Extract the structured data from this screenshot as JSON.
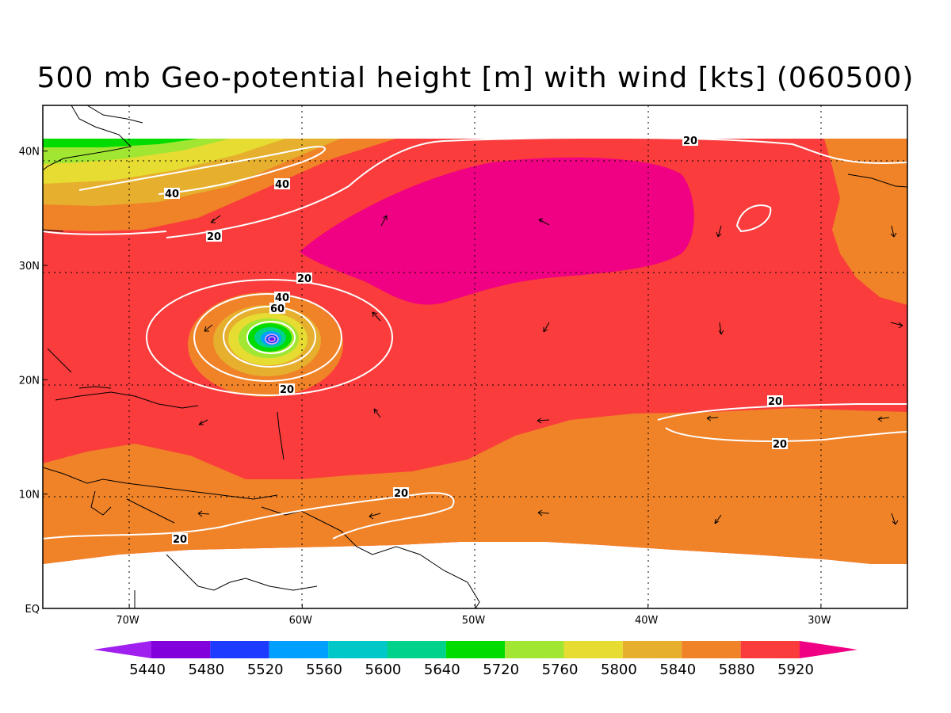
{
  "title": "500 mb Geo-potential height [m] with wind [kts] (060500)",
  "map": {
    "lon_range": [
      -75,
      -25
    ],
    "lat_range": [
      0,
      44
    ],
    "lat_ticks": [
      {
        "value": 40,
        "label": "40N"
      },
      {
        "value": 30,
        "label": "30N"
      },
      {
        "value": 20,
        "label": "20N"
      },
      {
        "value": 10,
        "label": "10N"
      },
      {
        "value": 0,
        "label": "EQ"
      }
    ],
    "lon_ticks": [
      {
        "value": -70,
        "label": "70W"
      },
      {
        "value": -60,
        "label": "60W"
      },
      {
        "value": -50,
        "label": "50W"
      },
      {
        "value": -40,
        "label": "40W"
      },
      {
        "value": -30,
        "label": "30W"
      }
    ],
    "grid": true
  },
  "colorbar": {
    "levels": [
      "5440",
      "5480",
      "5520",
      "5560",
      "5600",
      "5640",
      "5720",
      "5760",
      "5800",
      "5840",
      "5880",
      "5920"
    ],
    "colors": [
      "#a020f0",
      "#8200dc",
      "#1e3cff",
      "#00a0ff",
      "#00c8c8",
      "#00d28c",
      "#00dc00",
      "#a0e632",
      "#e6dc32",
      "#e6af2d",
      "#f08228",
      "#fa3c3c",
      "#f00082"
    ]
  },
  "wind_contours": [
    {
      "label": "20"
    },
    {
      "label": "40"
    },
    {
      "label": "40"
    },
    {
      "label": "20"
    },
    {
      "label": "20"
    },
    {
      "label": "40"
    },
    {
      "label": "60"
    },
    {
      "label": "20"
    },
    {
      "label": "20"
    },
    {
      "label": "20"
    },
    {
      "label": "20"
    },
    {
      "label": "20"
    }
  ]
}
